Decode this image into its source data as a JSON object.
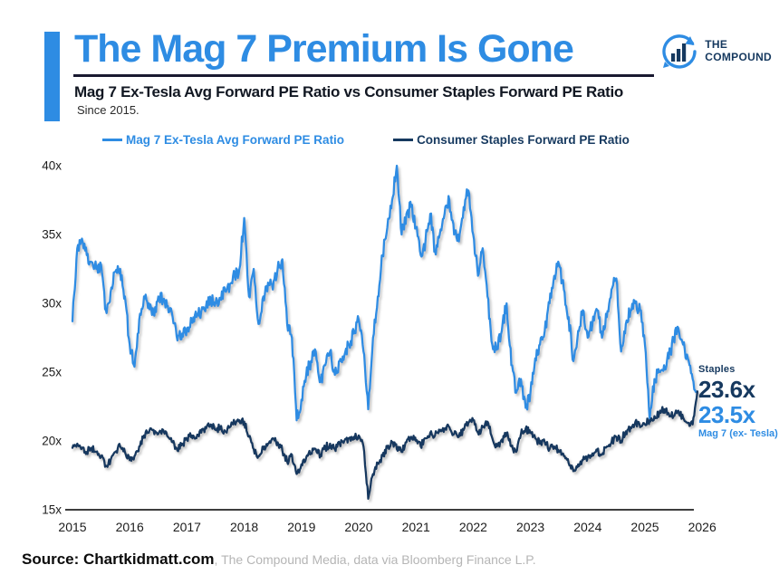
{
  "header": {
    "title": "The Mag 7 Premium Is Gone",
    "subtitle": "Mag 7 Ex-Tesla Avg Forward PE Ratio vs Consumer Staples Forward PE Ratio",
    "since": "Since 2015.",
    "logo": {
      "line1": "THE",
      "line2": "COMPOUND"
    }
  },
  "legend": [
    {
      "label": "Mag 7 Ex-Tesla Avg Forward PE Ratio",
      "color": "#2E8CE3"
    },
    {
      "label": "Consumer Staples Forward PE Ratio",
      "color": "#16395F"
    }
  ],
  "annotations": {
    "staples_label": "Staples",
    "staples_value": "23.6x",
    "mag7_value": "23.5x",
    "mag7_label": "Mag 7 (ex- Tesla)"
  },
  "source": {
    "bold": "Source: Chartkidmatt.com",
    "rest": ", The Compound Media, data via Bloomberg Finance L.P."
  },
  "colors": {
    "accent_blue": "#2E8CE3",
    "navy": "#16395F",
    "axis_line": "#3d3d3d",
    "tick_text": "#1c1c1c",
    "source_gray": "#b5b5b5"
  },
  "chart_data": {
    "type": "line",
    "title": "Mag 7 Ex-Tesla Avg Forward PE Ratio vs Consumer Staples Forward PE Ratio",
    "subtitle": "Since 2015.",
    "x_frequency": "monthly",
    "x_start_year": 2015,
    "x_ticks": [
      "2015",
      "2016",
      "2017",
      "2018",
      "2019",
      "2020",
      "2021",
      "2022",
      "2023",
      "2024",
      "2025",
      "2026"
    ],
    "y_ticks": [
      "15x",
      "20x",
      "25x",
      "30x",
      "35x",
      "40x"
    ],
    "ylim": [
      15,
      40.5
    ],
    "grid": false,
    "legend_position": "top",
    "series": [
      {
        "name": "Mag 7 Ex-Tesla Avg Forward PE Ratio",
        "color": "#2E8CE3",
        "values": [
          28.7,
          34.0,
          34.7,
          33.5,
          33.0,
          32.5,
          32.8,
          29.5,
          30.8,
          32.3,
          32.5,
          30.5,
          27.0,
          25.4,
          28.8,
          30.5,
          30.0,
          29.2,
          30.5,
          30.2,
          29.8,
          29.0,
          27.3,
          27.8,
          28.2,
          28.6,
          29.0,
          29.4,
          29.8,
          30.2,
          30.0,
          30.4,
          30.9,
          31.4,
          32.0,
          32.5,
          36.2,
          30.5,
          32.5,
          28.5,
          30.5,
          31.5,
          31.0,
          32.5,
          33.2,
          28.5,
          27.5,
          21.5,
          23.0,
          24.8,
          25.8,
          26.5,
          24.3,
          25.5,
          26.5,
          24.8,
          25.8,
          26.2,
          27.0,
          27.8,
          28.8,
          26.5,
          22.3,
          27.5,
          30.5,
          33.5,
          35.5,
          37.5,
          40.0,
          35.0,
          36.5,
          37.0,
          35.5,
          33.5,
          34.5,
          36.5,
          33.8,
          35.0,
          36.5,
          37.5,
          35.0,
          34.5,
          37.0,
          38.2,
          35.0,
          32.0,
          34.0,
          30.5,
          27.0,
          26.8,
          28.0,
          30.0,
          25.5,
          23.5,
          24.5,
          22.4,
          23.5,
          26.0,
          27.0,
          28.0,
          30.0,
          32.0,
          32.8,
          31.0,
          29.0,
          25.8,
          28.0,
          29.5,
          27.5,
          28.5,
          29.5,
          27.5,
          29.0,
          31.0,
          31.8,
          26.5,
          28.5,
          29.5,
          30.0,
          29.5,
          27.0,
          21.5,
          24.5,
          25.0,
          25.5,
          26.0,
          27.5,
          28.2,
          27.0,
          26.0,
          24.5,
          23.5
        ],
        "end_value": 23.5
      },
      {
        "name": "Consumer Staples Forward PE Ratio",
        "color": "#16395F",
        "values": [
          19.5,
          19.8,
          19.5,
          19.2,
          19.5,
          19.2,
          18.9,
          18.2,
          18.6,
          19.2,
          19.6,
          19.2,
          18.6,
          18.9,
          19.6,
          20.4,
          20.6,
          20.8,
          20.5,
          20.8,
          20.3,
          19.9,
          19.3,
          19.8,
          20.1,
          20.4,
          20.2,
          20.6,
          20.9,
          21.2,
          20.8,
          21.0,
          20.7,
          21.0,
          21.3,
          21.5,
          21.4,
          20.3,
          19.4,
          18.9,
          19.4,
          19.8,
          20.2,
          19.9,
          19.3,
          18.5,
          19.0,
          17.6,
          18.3,
          18.8,
          19.1,
          19.4,
          19.0,
          19.5,
          19.8,
          19.4,
          19.8,
          20.0,
          20.2,
          20.3,
          20.4,
          19.6,
          15.8,
          17.6,
          18.4,
          18.9,
          19.5,
          19.9,
          19.4,
          19.2,
          19.9,
          20.3,
          20.0,
          19.6,
          20.2,
          20.6,
          20.4,
          20.7,
          20.9,
          21.0,
          20.5,
          20.3,
          20.8,
          21.3,
          21.5,
          20.6,
          21.0,
          21.4,
          20.2,
          19.6,
          20.1,
          20.6,
          19.6,
          19.2,
          20.5,
          20.9,
          20.6,
          20.2,
          19.8,
          19.9,
          19.4,
          19.6,
          19.2,
          18.9,
          18.4,
          17.8,
          18.3,
          18.6,
          18.8,
          19.1,
          19.3,
          19.0,
          19.6,
          19.9,
          20.3,
          20.0,
          20.7,
          21.0,
          21.4,
          21.0,
          21.2,
          21.5,
          21.8,
          22.0,
          22.3,
          22.0,
          21.8,
          22.2,
          21.7,
          21.3,
          21.2,
          23.6
        ],
        "end_value": 23.6
      }
    ]
  }
}
